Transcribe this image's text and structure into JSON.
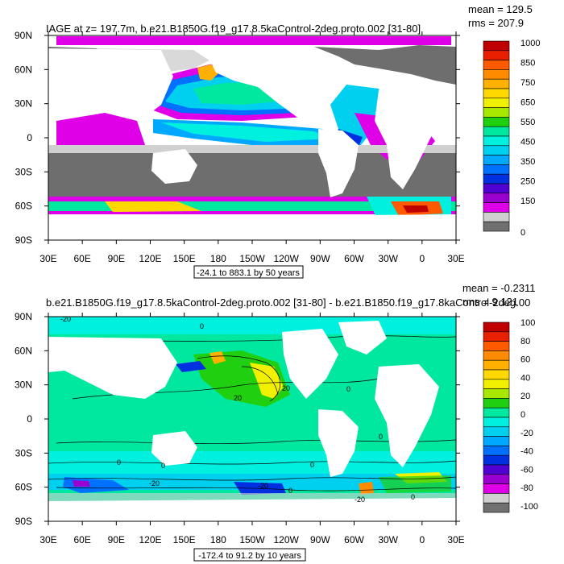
{
  "chart_data": [
    {
      "type": "heatmap",
      "title": "IAGE at z= 197.7m, b.e21.B1850G.f19_g17.8.5kaControl-2deg.proto.002 [31-80]",
      "stats": [
        "mean = 129.5",
        "rms = 207.9"
      ],
      "range_note": "-24.1 to 883.1 by 50 years",
      "x_ticks": [
        "30E",
        "60E",
        "90E",
        "120E",
        "150E",
        "180",
        "150W",
        "120W",
        "90W",
        "60W",
        "30W",
        "0",
        "30E"
      ],
      "y_ticks": [
        "90N",
        "60N",
        "30N",
        "0",
        "30S",
        "60S",
        "90S"
      ],
      "colorbar": {
        "labels": [
          "1000",
          "850",
          "750",
          "650",
          "550",
          "450",
          "350",
          "250",
          "150",
          "0"
        ],
        "colors": [
          "#c00000",
          "#e82000",
          "#ff5a00",
          "#ff8c00",
          "#ffb000",
          "#ffd800",
          "#f0f000",
          "#a8e800",
          "#20d010",
          "#00e8a0",
          "#00f0e0",
          "#00d0f0",
          "#00a8ff",
          "#0070ff",
          "#0030e0",
          "#5000d0",
          "#9a00d0",
          "#e000e8",
          "#d0d0d0",
          "#707070"
        ]
      }
    },
    {
      "type": "heatmap",
      "title": "b.e21.B1850G.f19_g17.8.5kaControl-2deg.proto.002 [31-80] - b.e21.B1850.f19_g17.8kaControl-2deg.00",
      "stats": [
        "mean = -0.2311",
        "rms = 9.121"
      ],
      "range_note": "-172.4 to 91.2 by 10 years",
      "contour_labels": [
        "-20",
        "0",
        "0",
        "20",
        "0",
        "0",
        "0",
        "0",
        "0",
        "20",
        "-20",
        "-20",
        "-20",
        "0"
      ],
      "x_ticks": [
        "30E",
        "60E",
        "90E",
        "120E",
        "150E",
        "180",
        "150W",
        "120W",
        "90W",
        "60W",
        "30W",
        "0",
        "30E"
      ],
      "y_ticks": [
        "90N",
        "60N",
        "30N",
        "0",
        "30S",
        "60S",
        "90S"
      ],
      "colorbar": {
        "labels": [
          "100",
          "80",
          "60",
          "40",
          "20",
          "0",
          "-20",
          "-40",
          "-60",
          "-80",
          "-100"
        ],
        "colors": [
          "#c00000",
          "#e82000",
          "#ff5a00",
          "#ff8c00",
          "#ffb000",
          "#ffd800",
          "#f0f000",
          "#a8e800",
          "#20d010",
          "#00e8a0",
          "#00f0e0",
          "#00d0f0",
          "#00a8ff",
          "#0070ff",
          "#0030e0",
          "#5000d0",
          "#9a00d0",
          "#e000e8",
          "#d0d0d0",
          "#707070"
        ]
      }
    }
  ]
}
